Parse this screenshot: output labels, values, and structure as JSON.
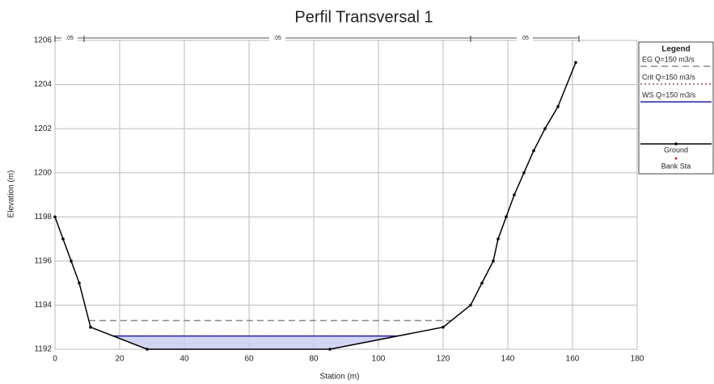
{
  "chart_data": {
    "type": "cross_section",
    "title": "Perfil Transversal 1",
    "x_label": "Station (m)",
    "y_label": "Elevation (m)",
    "xlim": [
      0,
      180
    ],
    "xticks": [
      0,
      20,
      40,
      60,
      80,
      100,
      120,
      140,
      160,
      180
    ],
    "ylim": [
      1192,
      1206
    ],
    "yticks": [
      1192,
      1194,
      1196,
      1198,
      1200,
      1202,
      1204,
      1206
    ],
    "grid": true,
    "legend_title": "Legend",
    "ground": {
      "name": "Ground",
      "color": "#000000",
      "x": [
        0,
        2.5,
        5,
        7.5,
        11,
        28.5,
        85,
        120,
        128.5,
        132,
        135.5,
        137,
        139.5,
        142,
        145,
        148,
        151.5,
        155.5,
        161
      ],
      "y": [
        1198,
        1197,
        1196,
        1195,
        1193,
        1192,
        1192,
        1193,
        1194,
        1195,
        1196,
        1197,
        1198,
        1199,
        1200,
        1201,
        1202,
        1203,
        1205
      ]
    },
    "levels": [
      {
        "name": "EG Q=150 m3/s",
        "color": "#888888",
        "style": "dash",
        "value": 1193.3
      },
      {
        "name": "Crit Q=150 m3/s",
        "color": "#aa4444",
        "style": "dot",
        "value": 1192.6
      },
      {
        "name": "WS Q=150 m3/s",
        "color": "#2222aa",
        "style": "solid",
        "value": 1192.6
      }
    ],
    "bank": {
      "name": "Bank Sta",
      "color": "#cc2222"
    },
    "manning": {
      "stations": [
        0,
        9,
        128.5,
        162
      ],
      "labels": [
        ".05",
        ".05",
        ".05"
      ]
    }
  }
}
